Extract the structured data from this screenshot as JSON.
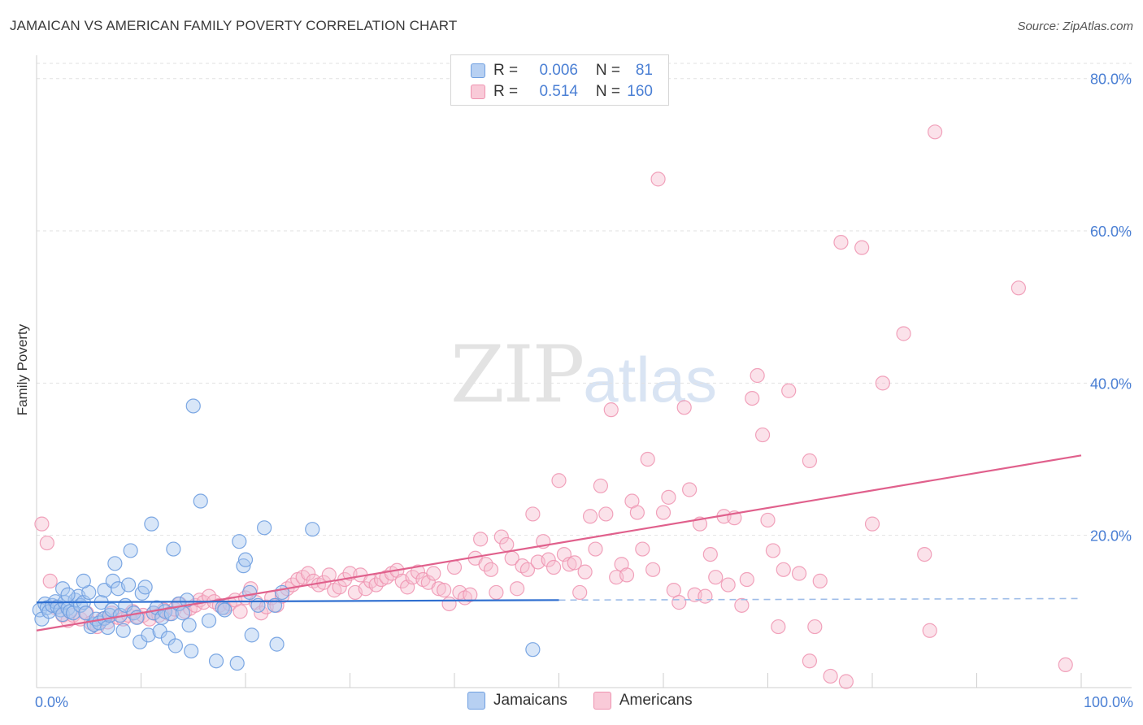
{
  "header": {
    "title": "JAMAICAN VS AMERICAN FAMILY POVERTY CORRELATION CHART",
    "source": "Source: ZipAtlas.com"
  },
  "watermark": {
    "zip": "ZIP",
    "atlas": "atlas"
  },
  "legend": {
    "r_label": "R =",
    "n_label": "N =",
    "jamaicans": {
      "r": "0.006",
      "n": "81"
    },
    "americans": {
      "r": "0.514",
      "n": "160"
    }
  },
  "colors": {
    "jamaicans_fill": "#a9c8f0",
    "jamaicans_stroke": "#6f9fe0",
    "jamaicans_line": "#2f6fd0",
    "americans_fill": "#f7bfd0",
    "americans_stroke": "#ee93b0",
    "americans_line": "#e0608c",
    "tick_label": "#4a7fd4",
    "grid": "#e2e2e2"
  },
  "chart_data": {
    "type": "scatter",
    "title": "JAMAICAN VS AMERICAN FAMILY POVERTY CORRELATION CHART",
    "xlabel": "",
    "ylabel": "Family Poverty",
    "xlim": [
      0,
      100
    ],
    "ylim": [
      0,
      82
    ],
    "x_tick_labels": [
      {
        "value": 0,
        "label": "0.0%"
      },
      {
        "value": 100,
        "label": "100.0%"
      }
    ],
    "y_ticks": [
      {
        "value": 20,
        "label": "20.0%"
      },
      {
        "value": 40,
        "label": "40.0%"
      },
      {
        "value": 60,
        "label": "60.0%"
      },
      {
        "value": 80,
        "label": "80.0%"
      }
    ],
    "x_minor_ticks": [
      0,
      10,
      20,
      30,
      40,
      50,
      60,
      70,
      80,
      90,
      100
    ],
    "legend_position": "top-center",
    "series": [
      {
        "name": "Jamaicans",
        "r": 0.006,
        "n": 81,
        "trend": {
          "x0": 0,
          "y0": 11.2,
          "x1": 50,
          "y1": 11.5,
          "dashed_to_x": 100,
          "dashed_to_y": 11.7
        },
        "points": [
          [
            0.3,
            10.2
          ],
          [
            0.5,
            9.0
          ],
          [
            0.8,
            11.0
          ],
          [
            1.0,
            10.5
          ],
          [
            1.2,
            10.0
          ],
          [
            1.5,
            10.8
          ],
          [
            1.8,
            11.3
          ],
          [
            2.0,
            10.6
          ],
          [
            2.3,
            10.2
          ],
          [
            2.5,
            9.6
          ],
          [
            2.7,
            11.2
          ],
          [
            3.0,
            10.4
          ],
          [
            3.2,
            10.0
          ],
          [
            3.5,
            9.8
          ],
          [
            3.7,
            11.5
          ],
          [
            4.0,
            12.0
          ],
          [
            4.2,
            10.8
          ],
          [
            4.5,
            11.2
          ],
          [
            4.7,
            9.8
          ],
          [
            5.0,
            12.5
          ],
          [
            5.2,
            8.0
          ],
          [
            5.5,
            8.3
          ],
          [
            5.7,
            9.0
          ],
          [
            6.0,
            8.5
          ],
          [
            6.2,
            11.2
          ],
          [
            6.5,
            9.1
          ],
          [
            6.8,
            7.9
          ],
          [
            7.0,
            9.5
          ],
          [
            7.2,
            10.2
          ],
          [
            2.5,
            13.0
          ],
          [
            3.0,
            12.2
          ],
          [
            4.5,
            14.0
          ],
          [
            6.5,
            12.8
          ],
          [
            7.3,
            14.0
          ],
          [
            7.5,
            16.3
          ],
          [
            7.8,
            13.0
          ],
          [
            8.0,
            9.5
          ],
          [
            8.3,
            7.5
          ],
          [
            8.5,
            10.8
          ],
          [
            8.8,
            13.5
          ],
          [
            9.0,
            18.0
          ],
          [
            9.3,
            9.8
          ],
          [
            9.6,
            9.2
          ],
          [
            9.9,
            6.0
          ],
          [
            10.1,
            12.4
          ],
          [
            10.4,
            13.2
          ],
          [
            10.7,
            6.9
          ],
          [
            11.0,
            21.5
          ],
          [
            11.2,
            9.8
          ],
          [
            11.5,
            10.5
          ],
          [
            11.8,
            7.4
          ],
          [
            12.0,
            9.2
          ],
          [
            12.3,
            10.0
          ],
          [
            12.6,
            6.5
          ],
          [
            12.9,
            9.7
          ],
          [
            13.1,
            18.2
          ],
          [
            13.3,
            5.5
          ],
          [
            13.6,
            11.0
          ],
          [
            14.0,
            9.8
          ],
          [
            14.4,
            11.5
          ],
          [
            14.6,
            8.2
          ],
          [
            14.8,
            4.8
          ],
          [
            15.0,
            37.0
          ],
          [
            15.7,
            24.5
          ],
          [
            16.5,
            8.8
          ],
          [
            17.2,
            3.5
          ],
          [
            17.8,
            10.5
          ],
          [
            18.0,
            10.2
          ],
          [
            19.2,
            3.2
          ],
          [
            19.4,
            19.2
          ],
          [
            19.8,
            16.0
          ],
          [
            20.0,
            16.8
          ],
          [
            20.4,
            12.5
          ],
          [
            20.6,
            6.9
          ],
          [
            21.2,
            10.8
          ],
          [
            21.8,
            21.0
          ],
          [
            22.8,
            10.8
          ],
          [
            23.0,
            5.7
          ],
          [
            23.5,
            12.5
          ],
          [
            26.4,
            20.8
          ],
          [
            47.5,
            5.0
          ]
        ]
      },
      {
        "name": "Americans",
        "r": 0.514,
        "n": 160,
        "trend": {
          "x0": 0,
          "y0": 7.5,
          "x1": 100,
          "y1": 30.5
        },
        "points": [
          [
            0.5,
            21.5
          ],
          [
            1.0,
            19.0
          ],
          [
            1.3,
            14.0
          ],
          [
            1.8,
            10.5
          ],
          [
            2.5,
            9.5
          ],
          [
            3.0,
            8.8
          ],
          [
            3.5,
            9.5
          ],
          [
            4.2,
            9.0
          ],
          [
            4.8,
            9.8
          ],
          [
            5.2,
            8.5
          ],
          [
            5.8,
            8.0
          ],
          [
            6.3,
            9.0
          ],
          [
            6.8,
            8.6
          ],
          [
            7.2,
            9.8
          ],
          [
            7.8,
            9.2
          ],
          [
            8.3,
            9.0
          ],
          [
            8.8,
            9.5
          ],
          [
            9.2,
            10.0
          ],
          [
            9.7,
            9.3
          ],
          [
            10.2,
            9.5
          ],
          [
            10.8,
            9.0
          ],
          [
            11.2,
            9.8
          ],
          [
            11.7,
            9.5
          ],
          [
            12.2,
            10.2
          ],
          [
            12.7,
            9.7
          ],
          [
            13.2,
            10.3
          ],
          [
            13.7,
            11.0
          ],
          [
            14.2,
            10.0
          ],
          [
            14.7,
            10.4
          ],
          [
            15.2,
            10.8
          ],
          [
            15.6,
            11.5
          ],
          [
            16.0,
            11.2
          ],
          [
            16.5,
            12.0
          ],
          [
            17.0,
            11.3
          ],
          [
            17.5,
            10.8
          ],
          [
            18.0,
            10.5
          ],
          [
            18.5,
            11.0
          ],
          [
            19.0,
            11.5
          ],
          [
            19.5,
            10.0
          ],
          [
            20.0,
            11.8
          ],
          [
            20.5,
            13.0
          ],
          [
            21.0,
            11.2
          ],
          [
            21.5,
            9.8
          ],
          [
            22.0,
            10.6
          ],
          [
            22.5,
            11.8
          ],
          [
            23.0,
            10.8
          ],
          [
            23.5,
            12.0
          ],
          [
            24.0,
            13.0
          ],
          [
            24.5,
            13.5
          ],
          [
            25.0,
            14.2
          ],
          [
            25.5,
            14.5
          ],
          [
            26.0,
            15.0
          ],
          [
            26.5,
            14.0
          ],
          [
            27.0,
            13.5
          ],
          [
            27.5,
            13.8
          ],
          [
            28.0,
            14.8
          ],
          [
            28.5,
            12.8
          ],
          [
            29.0,
            13.2
          ],
          [
            29.5,
            14.2
          ],
          [
            30.0,
            15.0
          ],
          [
            30.5,
            12.5
          ],
          [
            31.0,
            14.8
          ],
          [
            31.5,
            13.0
          ],
          [
            32.0,
            14.0
          ],
          [
            32.5,
            13.5
          ],
          [
            33.0,
            14.2
          ],
          [
            33.5,
            14.5
          ],
          [
            34.0,
            15.0
          ],
          [
            34.5,
            15.4
          ],
          [
            35.0,
            14.0
          ],
          [
            35.5,
            13.2
          ],
          [
            36.0,
            14.5
          ],
          [
            36.5,
            15.2
          ],
          [
            37.0,
            14.2
          ],
          [
            37.5,
            13.8
          ],
          [
            38.0,
            15.0
          ],
          [
            38.5,
            13.0
          ],
          [
            39.0,
            12.8
          ],
          [
            39.5,
            11.0
          ],
          [
            40.0,
            15.8
          ],
          [
            40.5,
            12.5
          ],
          [
            41.0,
            11.8
          ],
          [
            41.5,
            12.2
          ],
          [
            42.0,
            17.0
          ],
          [
            42.5,
            19.5
          ],
          [
            43.0,
            16.2
          ],
          [
            43.5,
            15.5
          ],
          [
            44.0,
            12.5
          ],
          [
            44.5,
            19.8
          ],
          [
            45.0,
            18.8
          ],
          [
            45.5,
            17.0
          ],
          [
            46.0,
            13.0
          ],
          [
            46.5,
            16.0
          ],
          [
            47.0,
            15.5
          ],
          [
            47.5,
            22.8
          ],
          [
            48.0,
            16.5
          ],
          [
            48.5,
            19.2
          ],
          [
            49.0,
            16.8
          ],
          [
            49.5,
            15.8
          ],
          [
            50.0,
            27.2
          ],
          [
            50.5,
            17.5
          ],
          [
            51.0,
            16.2
          ],
          [
            51.5,
            16.4
          ],
          [
            52.0,
            12.5
          ],
          [
            52.5,
            15.2
          ],
          [
            53.0,
            22.5
          ],
          [
            53.5,
            18.2
          ],
          [
            54.0,
            26.5
          ],
          [
            54.5,
            22.8
          ],
          [
            55.0,
            36.5
          ],
          [
            55.5,
            14.5
          ],
          [
            56.0,
            16.2
          ],
          [
            56.5,
            14.8
          ],
          [
            57.0,
            24.5
          ],
          [
            57.5,
            23.0
          ],
          [
            58.0,
            18.2
          ],
          [
            58.5,
            30.0
          ],
          [
            59.0,
            15.5
          ],
          [
            59.5,
            66.8
          ],
          [
            60.0,
            23.0
          ],
          [
            60.5,
            25.0
          ],
          [
            61.0,
            12.8
          ],
          [
            61.5,
            11.2
          ],
          [
            62.0,
            36.8
          ],
          [
            62.5,
            26.0
          ],
          [
            63.0,
            12.2
          ],
          [
            63.5,
            21.5
          ],
          [
            64.0,
            12.0
          ],
          [
            64.5,
            17.5
          ],
          [
            65.0,
            14.5
          ],
          [
            65.8,
            22.5
          ],
          [
            66.2,
            13.5
          ],
          [
            66.8,
            22.3
          ],
          [
            67.5,
            10.8
          ],
          [
            68.0,
            14.2
          ],
          [
            68.5,
            38.0
          ],
          [
            69.0,
            41.0
          ],
          [
            69.5,
            33.2
          ],
          [
            70.0,
            22.0
          ],
          [
            70.5,
            18.0
          ],
          [
            71.0,
            8.0
          ],
          [
            71.5,
            15.5
          ],
          [
            72.0,
            39.0
          ],
          [
            73.0,
            15.0
          ],
          [
            74.0,
            29.8
          ],
          [
            74.5,
            8.0
          ],
          [
            75.0,
            14.0
          ],
          [
            76.0,
            1.5
          ],
          [
            77.0,
            58.5
          ],
          [
            77.5,
            0.8
          ],
          [
            79.0,
            57.8
          ],
          [
            80.0,
            21.5
          ],
          [
            81.0,
            40.0
          ],
          [
            83.0,
            46.5
          ],
          [
            85.0,
            17.5
          ],
          [
            85.5,
            7.5
          ],
          [
            86.0,
            73.0
          ],
          [
            94.0,
            52.5
          ],
          [
            98.5,
            3.0
          ],
          [
            74.0,
            3.5
          ]
        ]
      }
    ]
  },
  "bottom_legend": {
    "jamaicans": "Jamaicans",
    "americans": "Americans"
  }
}
